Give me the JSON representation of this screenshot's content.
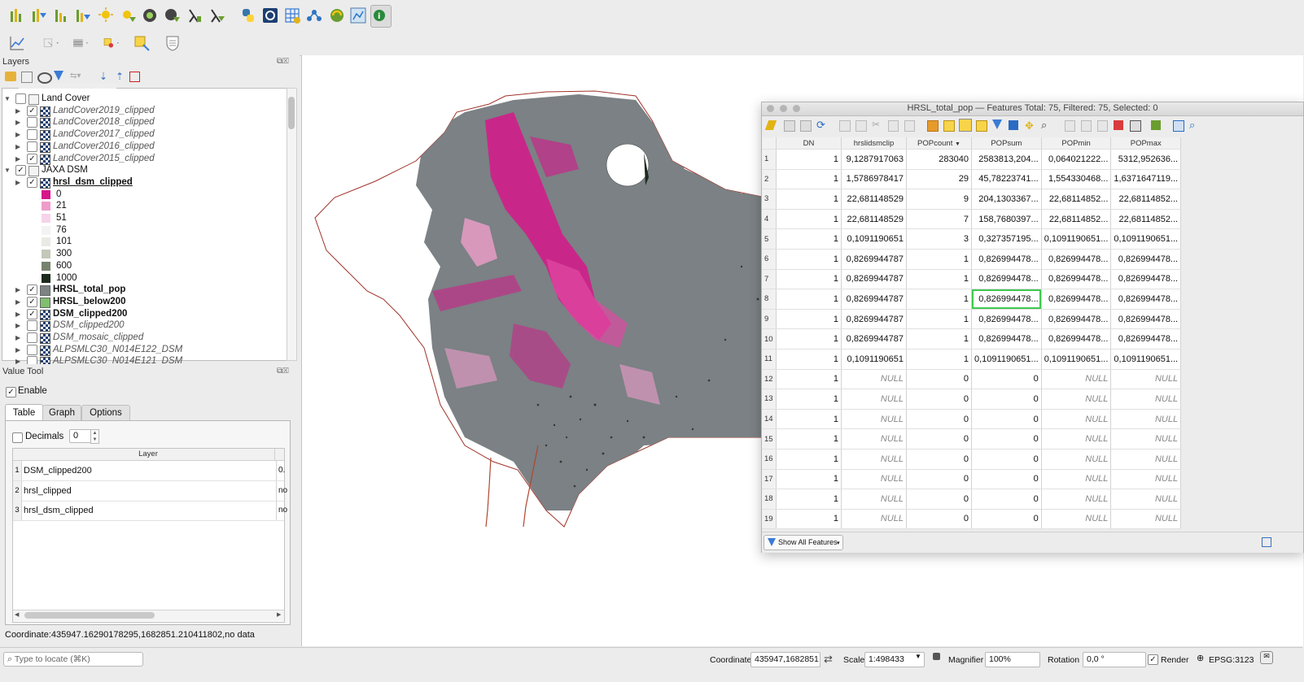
{
  "layers_panel": {
    "title": "Layers",
    "tree": [
      {
        "label": "Land Cover",
        "checked": false,
        "style": "group"
      },
      {
        "label": "LandCover2019_clipped",
        "checked": true,
        "style": "italic"
      },
      {
        "label": "LandCover2018_clipped",
        "checked": false,
        "style": "italic"
      },
      {
        "label": "LandCover2017_clipped",
        "checked": false,
        "style": "italic"
      },
      {
        "label": "LandCover2016_clipped",
        "checked": false,
        "style": "italic"
      },
      {
        "label": "LandCover2015_clipped",
        "checked": true,
        "style": "italic"
      },
      {
        "label": "JAXA DSM",
        "checked": true,
        "style": "group"
      },
      {
        "label": "hrsl_dsm_clipped",
        "checked": true,
        "style": "bold-underline"
      }
    ],
    "legend": [
      {
        "label": "0",
        "color": "#d6178a"
      },
      {
        "label": "21",
        "color": "#ef9dca"
      },
      {
        "label": "51",
        "color": "#f6d3e8"
      },
      {
        "label": "76",
        "color": "#f3f3f3"
      },
      {
        "label": "101",
        "color": "#e8ebe4"
      },
      {
        "label": "300",
        "color": "#c3c8b9"
      },
      {
        "label": "600",
        "color": "#77836d"
      },
      {
        "label": "1000",
        "color": "#1d2a1c"
      }
    ],
    "tree2": [
      {
        "label": "HRSL_total_pop",
        "checked": true,
        "style": "bold",
        "color": "#7d8385"
      },
      {
        "label": "HRSL_below200",
        "checked": true,
        "style": "bold",
        "color": "#7fbf6e"
      },
      {
        "label": "DSM_clipped200",
        "checked": true,
        "style": "bold"
      },
      {
        "label": "DSM_clipped200",
        "checked": false,
        "style": "italic"
      },
      {
        "label": "DSM_mosaic_clipped",
        "checked": false,
        "style": "italic"
      },
      {
        "label": "ALPSMLC30_N014E122_DSM",
        "checked": false,
        "style": "italic"
      },
      {
        "label": "ALPSMLC30_N014E121_DSM",
        "checked": false,
        "style": "italic"
      }
    ]
  },
  "value_tool": {
    "title": "Value Tool",
    "enable_label": "Enable",
    "enable_checked": true,
    "tabs": [
      "Table",
      "Graph",
      "Options"
    ],
    "decimals_label": "Decimals",
    "decimals_value": "0",
    "column_header": "Layer",
    "rows": [
      {
        "n": "1",
        "layer": "DSM_clipped200",
        "value": "0."
      },
      {
        "n": "2",
        "layer": "hrsl_clipped",
        "value": "no"
      },
      {
        "n": "3",
        "layer": "hrsl_dsm_clipped",
        "value": "no"
      }
    ],
    "coordinate_text": "Coordinate:435947.16290178295,1682851.210411802,no data"
  },
  "attribute_table": {
    "title": "HRSL_total_pop — Features Total: 75, Filtered: 75, Selected: 0",
    "columns": [
      "DN",
      "hrslidsmclip",
      "POPcount",
      "POPsum",
      "POPmin",
      "POPmax"
    ],
    "rows": [
      [
        "1",
        "1",
        "9,1287917063",
        "283040",
        "2583813,204...",
        "0,064021222...",
        "5312,952636..."
      ],
      [
        "2",
        "1",
        "1,5786978417",
        "29",
        "45,78223741...",
        "1,554330468...",
        "1,6371647119..."
      ],
      [
        "3",
        "1",
        "22,681148529",
        "9",
        "204,1303367...",
        "22,68114852...",
        "22,68114852..."
      ],
      [
        "4",
        "1",
        "22,681148529",
        "7",
        "158,7680397...",
        "22,68114852...",
        "22,68114852..."
      ],
      [
        "5",
        "1",
        "0,1091190651",
        "3",
        "0,327357195...",
        "0,1091190651...",
        "0,1091190651..."
      ],
      [
        "6",
        "1",
        "0,8269944787",
        "1",
        "0,826994478...",
        "0,826994478...",
        "0,826994478..."
      ],
      [
        "7",
        "1",
        "0,8269944787",
        "1",
        "0,826994478...",
        "0,826994478...",
        "0,826994478..."
      ],
      [
        "8",
        "1",
        "0,8269944787",
        "1",
        "0,826994478...",
        "0,826994478...",
        "0,826994478..."
      ],
      [
        "9",
        "1",
        "0,8269944787",
        "1",
        "0,826994478...",
        "0,826994478...",
        "0,826994478..."
      ],
      [
        "10",
        "1",
        "0,8269944787",
        "1",
        "0,826994478...",
        "0,826994478...",
        "0,826994478..."
      ],
      [
        "11",
        "1",
        "0,1091190651",
        "1",
        "0,1091190651...",
        "0,1091190651...",
        "0,1091190651..."
      ],
      [
        "12",
        "1",
        "NULL",
        "0",
        "0",
        "NULL",
        "NULL"
      ],
      [
        "13",
        "1",
        "NULL",
        "0",
        "0",
        "NULL",
        "NULL"
      ],
      [
        "14",
        "1",
        "NULL",
        "0",
        "0",
        "NULL",
        "NULL"
      ],
      [
        "15",
        "1",
        "NULL",
        "0",
        "0",
        "NULL",
        "NULL"
      ],
      [
        "16",
        "1",
        "NULL",
        "0",
        "0",
        "NULL",
        "NULL"
      ],
      [
        "17",
        "1",
        "NULL",
        "0",
        "0",
        "NULL",
        "NULL"
      ],
      [
        "18",
        "1",
        "NULL",
        "0",
        "0",
        "NULL",
        "NULL"
      ],
      [
        "19",
        "1",
        "NULL",
        "0",
        "0",
        "NULL",
        "NULL"
      ]
    ],
    "selected_cell": {
      "row": 8,
      "col": 4
    },
    "filter_button": "Show All Features"
  },
  "status_bar": {
    "locate_placeholder": "Type to locate (⌘K)",
    "coordinate_label": "Coordinate",
    "coordinate_value": "435947,1682851",
    "scale_label": "Scale",
    "scale_value": "1:498433",
    "magnifier_label": "Magnifier",
    "magnifier_value": "100%",
    "rotation_label": "Rotation",
    "rotation_value": "0,0 °",
    "render_label": "Render",
    "render_checked": true,
    "crs_label": "EPSG:3123"
  },
  "colors": {
    "map_gray": "#7b8184",
    "map_magenta": "#d6178a",
    "selection_green": "#3ec94f"
  }
}
